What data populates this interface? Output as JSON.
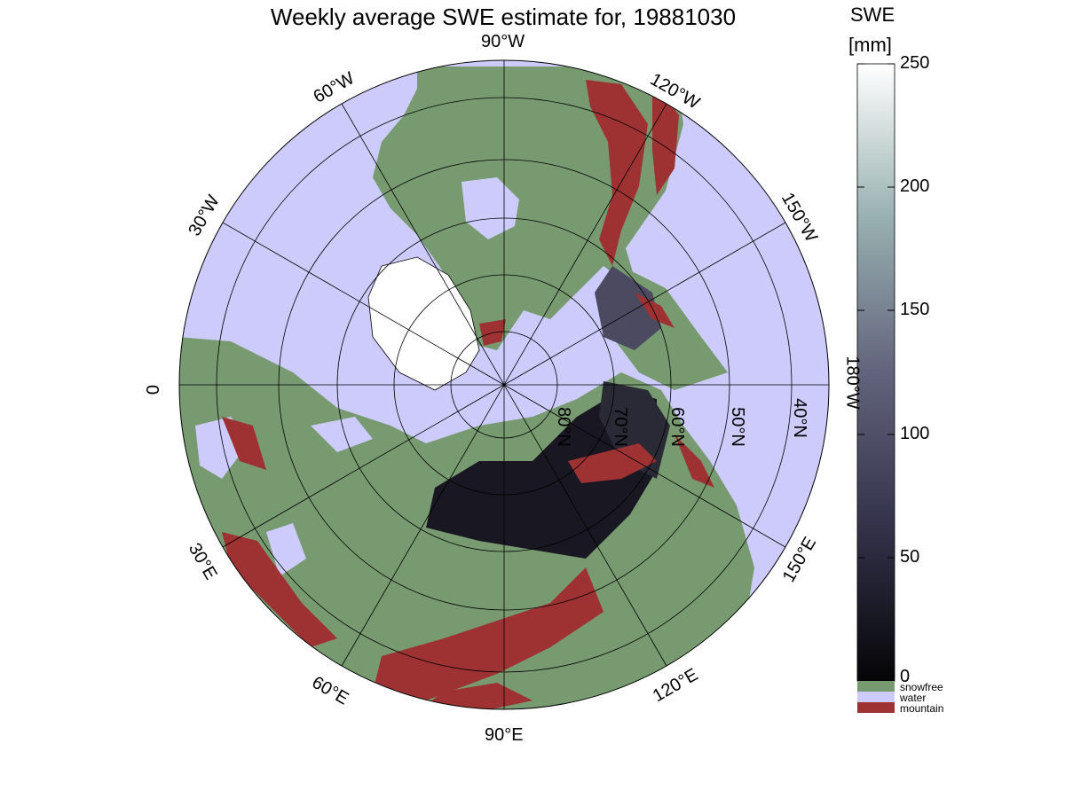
{
  "title": "Weekly average SWE estimate for, 19881030",
  "projection": "north polar stereographic",
  "longitude_labels": [
    "0",
    "30°W",
    "60°W",
    "90°W",
    "120°W",
    "150°W",
    "180°W",
    "150°E",
    "120°E",
    "90°E",
    "60°E",
    "30°E"
  ],
  "latitude_labels": [
    "80°N",
    "70°N",
    "60°N",
    "50°N",
    "40°N"
  ],
  "colorbar": {
    "label_line1": "SWE",
    "label_line2": "[mm]",
    "ticks": [
      "0",
      "50",
      "100",
      "150",
      "200",
      "250"
    ],
    "range": [
      0,
      250
    ],
    "colormap": "bone"
  },
  "categories": [
    {
      "name": "snowfree",
      "color": "#779a70"
    },
    {
      "name": "water",
      "color": "#cccbfc"
    },
    {
      "name": "mountain",
      "color": "#9e3232"
    }
  ],
  "colors": {
    "snowfree": "#779a70",
    "water": "#cccbfc",
    "mountain": "#9e3232",
    "snow_deep": "#191822",
    "snow_mid": "#4b4a60"
  }
}
